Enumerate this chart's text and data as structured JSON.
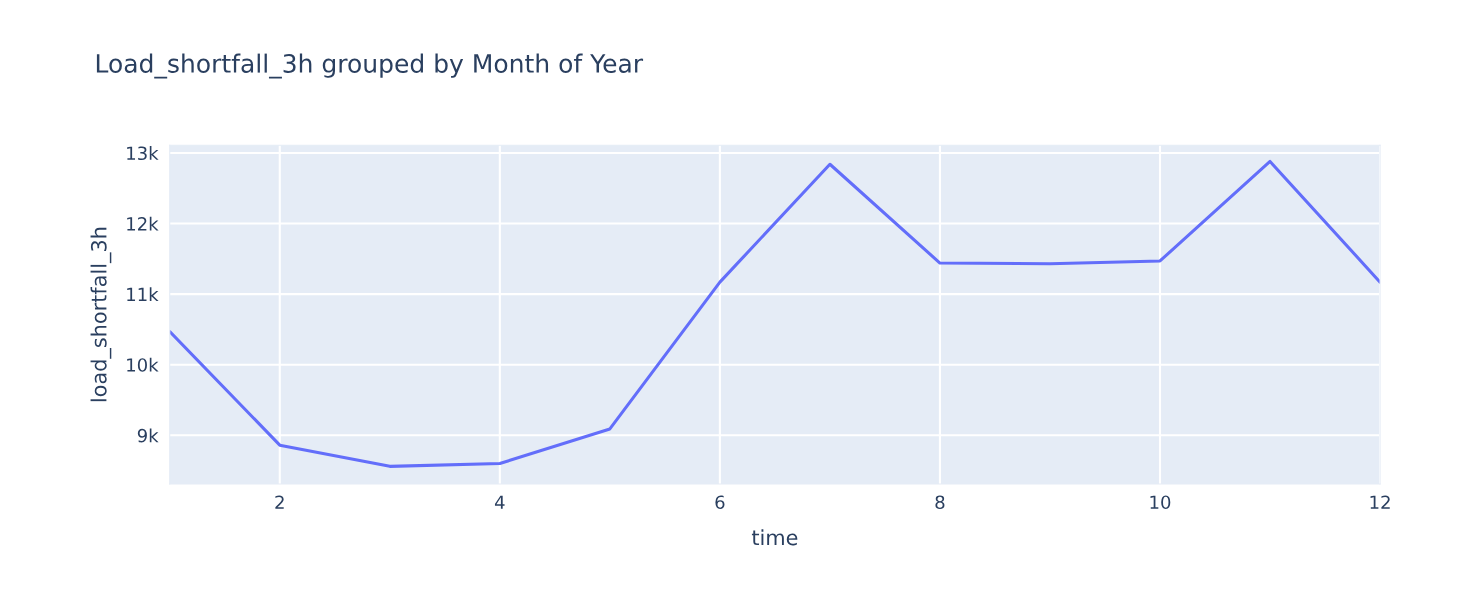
{
  "chart_data": {
    "type": "line",
    "title": "Load_shortfall_3h grouped by Month of Year",
    "xlabel": "time",
    "ylabel": "load_shortfall_3h",
    "x": [
      1,
      2,
      3,
      4,
      5,
      6,
      7,
      8,
      9,
      10,
      11,
      12
    ],
    "series": [
      {
        "color": "#636efa",
        "values": [
          10470,
          8860,
          8560,
          8600,
          9090,
          11170,
          12840,
          11440,
          11430,
          11470,
          12880,
          11170
        ]
      }
    ],
    "xlim": [
      1,
      12
    ],
    "ylim": [
      8310,
      13110
    ],
    "xticks": [
      2,
      4,
      6,
      8,
      10,
      12
    ],
    "yticks": [
      {
        "value": 9000,
        "label": "9k"
      },
      {
        "value": 10000,
        "label": "10k"
      },
      {
        "value": 11000,
        "label": "11k"
      },
      {
        "value": 12000,
        "label": "12k"
      },
      {
        "value": 13000,
        "label": "13k"
      }
    ],
    "grid": true,
    "marker": "none",
    "line_style": "solid"
  }
}
